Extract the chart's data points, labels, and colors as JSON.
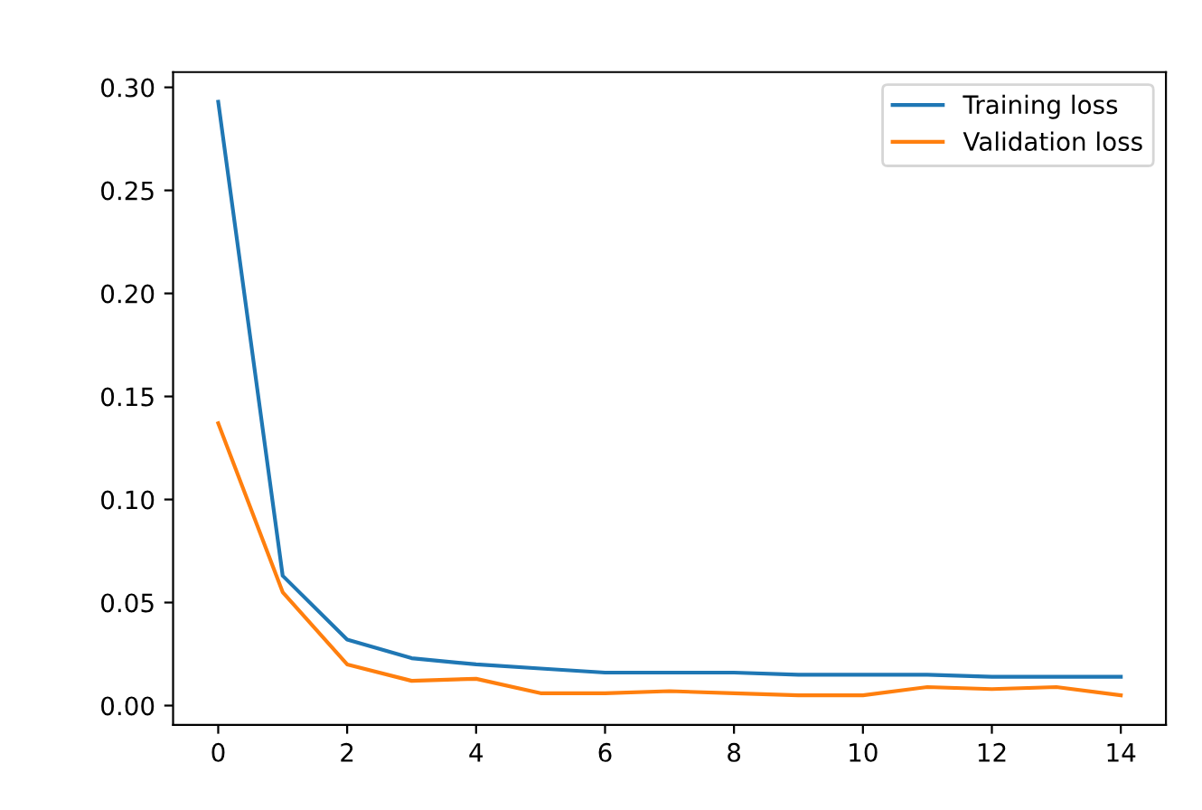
{
  "chart_data": {
    "type": "line",
    "x": [
      0,
      1,
      2,
      3,
      4,
      5,
      6,
      7,
      8,
      9,
      10,
      11,
      12,
      13,
      14
    ],
    "series": [
      {
        "name": "Training loss",
        "color": "#1f77b4",
        "values": [
          0.293,
          0.063,
          0.032,
          0.023,
          0.02,
          0.018,
          0.016,
          0.016,
          0.016,
          0.015,
          0.015,
          0.015,
          0.014,
          0.014,
          0.014
        ]
      },
      {
        "name": "Validation loss",
        "color": "#ff7f0e",
        "values": [
          0.137,
          0.055,
          0.02,
          0.012,
          0.013,
          0.006,
          0.006,
          0.007,
          0.006,
          0.005,
          0.005,
          0.009,
          0.008,
          0.009,
          0.005
        ]
      }
    ],
    "xlim": [
      -0.7,
      14.7
    ],
    "xticks": [
      0,
      2,
      4,
      6,
      8,
      10,
      12,
      14
    ],
    "ylim": [
      -0.0094,
      0.3074
    ],
    "yticks": [
      {
        "value": 0,
        "label": "0.00"
      },
      {
        "value": 0.05,
        "label": "0.05"
      },
      {
        "value": 0.1,
        "label": "0.10"
      },
      {
        "value": 0.15,
        "label": "0.15"
      },
      {
        "value": 0.2,
        "label": "0.20"
      },
      {
        "value": 0.25,
        "label": "0.25"
      },
      {
        "value": 0.3,
        "label": "0.30"
      }
    ],
    "grid": false,
    "legend": "top right"
  }
}
